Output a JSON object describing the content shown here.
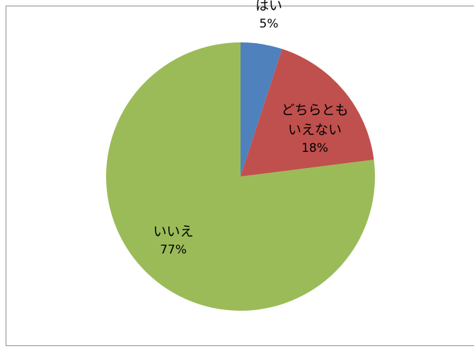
{
  "chart_data": {
    "type": "pie",
    "categories": [
      "はい",
      "どちらともいえない",
      "いいえ"
    ],
    "values": [
      5,
      18,
      77
    ],
    "value_labels": [
      "5%",
      "18%",
      "77%"
    ],
    "colors": [
      "#4f81bd",
      "#c0504d",
      "#9bbb59"
    ]
  }
}
